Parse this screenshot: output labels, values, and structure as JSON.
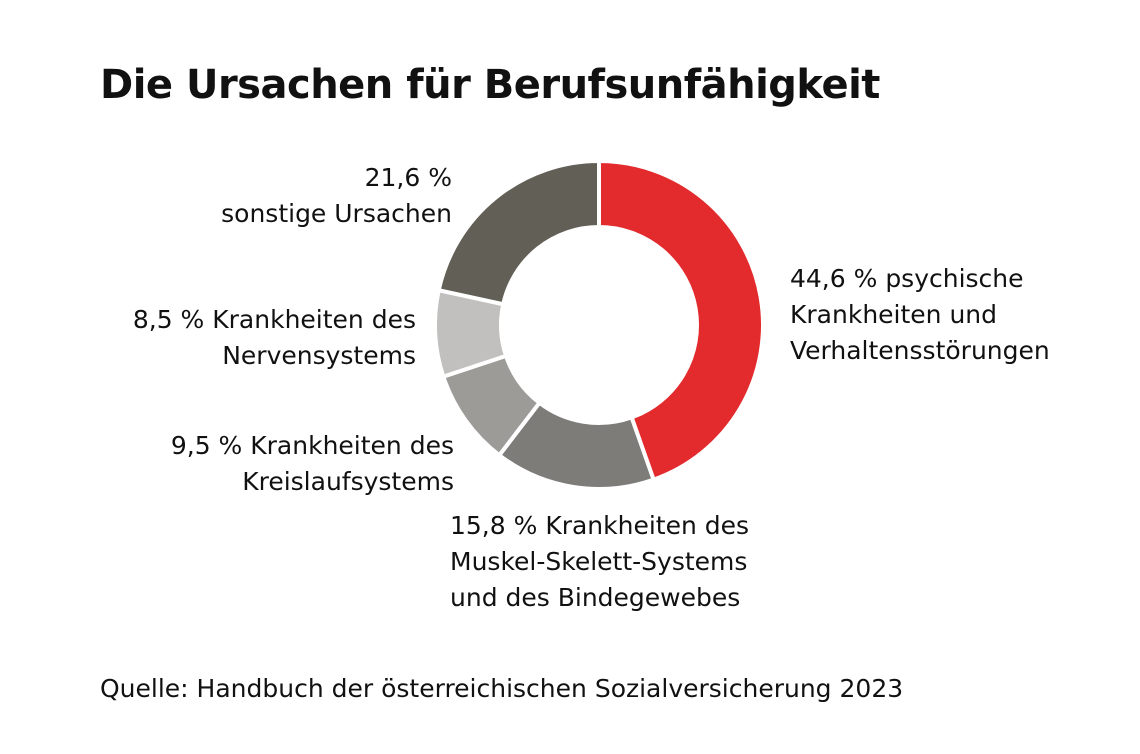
{
  "title": "Die Ursachen für Berufsunfähigkeit",
  "source": "Quelle: Handbuch der österreichischen Sozialversicherung 2023",
  "chart_data": {
    "type": "pie",
    "variant": "donut",
    "title": "Die Ursachen für Berufsunfähigkeit",
    "unit": "%",
    "slices": [
      {
        "value": 44.6,
        "color": "#e32b2e",
        "label_lines": [
          "44,6 % psychische",
          "Krankheiten und",
          "Verhaltensstörungen"
        ]
      },
      {
        "value": 15.8,
        "color": "#7d7c78",
        "label_lines": [
          "15,8 % Krankheiten des",
          "Muskel-Skelett-Systems",
          "und des Bindegewebes"
        ]
      },
      {
        "value": 9.5,
        "color": "#9c9b98",
        "label_lines": [
          "9,5 % Krankheiten des",
          "Kreislaufsystems"
        ]
      },
      {
        "value": 8.5,
        "color": "#c1c0be",
        "label_lines": [
          "8,5 % Krankheiten des",
          "Nervensystems"
        ]
      },
      {
        "value": 21.6,
        "color": "#625f56",
        "label_lines": [
          "21,6 %",
          "sonstige Ursachen"
        ]
      }
    ]
  }
}
